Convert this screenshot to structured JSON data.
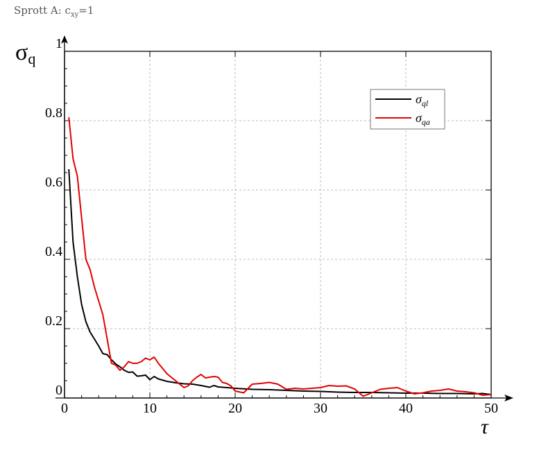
{
  "page": {
    "header": {
      "prefix": "Sprott A: c",
      "sub": "xy",
      "suffix": "=1"
    }
  },
  "chart_data": {
    "type": "line",
    "title": "",
    "xlabel": "τ",
    "ylabel": "σ_q",
    "ylabel_main": "σ",
    "ylabel_sub": "q",
    "xlim": [
      0,
      50
    ],
    "ylim": [
      0,
      1
    ],
    "x_ticks": [
      0,
      10,
      20,
      30,
      40,
      50
    ],
    "y_tick_labels": [
      {
        "value": 0,
        "label": "0"
      },
      {
        "value": 0.2,
        "label": "0.2"
      },
      {
        "value": 0.4,
        "label": "0.4"
      },
      {
        "value": 0.6,
        "label": "0.6"
      },
      {
        "value": 0.8,
        "label": "0.8"
      },
      {
        "value": 1,
        "label": "1"
      }
    ],
    "grid": true,
    "legend_position": "top-right",
    "series": [
      {
        "name_main": "σ",
        "name_sub": "ql",
        "color": "#000000",
        "x": [
          0.5,
          1,
          1.5,
          2,
          2.5,
          3,
          3.5,
          4,
          4.5,
          5,
          5.5,
          6,
          6.5,
          7,
          7.5,
          8,
          8.5,
          9,
          9.5,
          10,
          10.5,
          11,
          12,
          13,
          14,
          15,
          16,
          17,
          17.5,
          18,
          19,
          20,
          22,
          24,
          26,
          28,
          30,
          32,
          34,
          36,
          38,
          40,
          42,
          44,
          46,
          48,
          49,
          50
        ],
        "y": [
          0.66,
          0.45,
          0.35,
          0.27,
          0.22,
          0.19,
          0.17,
          0.15,
          0.128,
          0.125,
          0.11,
          0.098,
          0.09,
          0.08,
          0.074,
          0.075,
          0.063,
          0.064,
          0.066,
          0.053,
          0.062,
          0.055,
          0.048,
          0.044,
          0.041,
          0.04,
          0.036,
          0.031,
          0.036,
          0.032,
          0.03,
          0.028,
          0.025,
          0.024,
          0.022,
          0.02,
          0.019,
          0.017,
          0.016,
          0.016,
          0.015,
          0.014,
          0.014,
          0.013,
          0.013,
          0.012,
          0.013,
          0.01
        ]
      },
      {
        "name_main": "σ",
        "name_sub": "qa",
        "color": "#e00000",
        "x": [
          0.5,
          1,
          1.5,
          2,
          2.5,
          3,
          3.5,
          4,
          4.5,
          5,
          5.5,
          6,
          6.5,
          7,
          7.5,
          8,
          8.5,
          9,
          9.5,
          10,
          10.5,
          11,
          11.5,
          12,
          12.5,
          13,
          13.5,
          14,
          14.5,
          15,
          15.5,
          16,
          16.5,
          17,
          17.5,
          18,
          18.5,
          19,
          19.5,
          20,
          21,
          22,
          23,
          24,
          25,
          26,
          27,
          28,
          29,
          30,
          31,
          32,
          33,
          34,
          35,
          36,
          37,
          38,
          39,
          40,
          41,
          42,
          43,
          44,
          45,
          46,
          47,
          48,
          49,
          50
        ],
        "y": [
          0.81,
          0.69,
          0.64,
          0.52,
          0.4,
          0.37,
          0.32,
          0.28,
          0.24,
          0.17,
          0.1,
          0.095,
          0.08,
          0.09,
          0.105,
          0.1,
          0.1,
          0.105,
          0.115,
          0.11,
          0.118,
          0.1,
          0.085,
          0.07,
          0.06,
          0.05,
          0.04,
          0.03,
          0.035,
          0.05,
          0.06,
          0.068,
          0.058,
          0.06,
          0.062,
          0.06,
          0.045,
          0.042,
          0.035,
          0.02,
          0.015,
          0.04,
          0.042,
          0.045,
          0.04,
          0.025,
          0.028,
          0.026,
          0.028,
          0.03,
          0.036,
          0.034,
          0.035,
          0.026,
          0.005,
          0.015,
          0.025,
          0.028,
          0.03,
          0.02,
          0.012,
          0.015,
          0.02,
          0.022,
          0.026,
          0.02,
          0.018,
          0.015,
          0.008,
          0.01
        ]
      }
    ]
  }
}
